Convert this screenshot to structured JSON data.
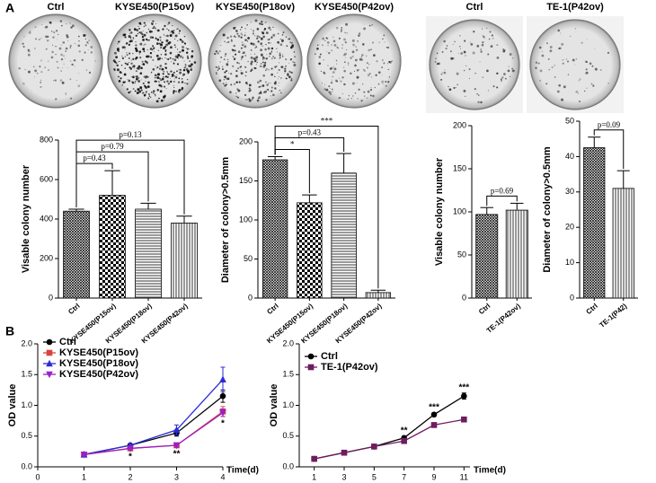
{
  "figure": {
    "panel_labels": [
      "A",
      "B"
    ],
    "dish_labels": [
      "Ctrl",
      "KYSE450(P15ov)",
      "KYSE450(P18ov)",
      "KYSE450(P42ov)",
      "Ctrl",
      "TE-1(P42ov)"
    ]
  },
  "chart_data": [
    {
      "type": "bar",
      "ylabel": "Visable colony number",
      "categories": [
        "Ctrl",
        "KYSE450(P15ov)",
        "KYSE450(P18ov)",
        "KYSE450(P42ov)"
      ],
      "values": [
        440,
        520,
        450,
        380
      ],
      "errors": [
        10,
        125,
        30,
        35
      ],
      "significance": [
        null,
        "p=0.43",
        "p=0.79",
        "p=0.13"
      ],
      "patterns": [
        "crosshatch",
        "checker",
        "hlines",
        "vlines"
      ],
      "ylim": [
        0,
        800
      ],
      "yticks": [
        0,
        200,
        400,
        600,
        800
      ]
    },
    {
      "type": "bar",
      "ylabel": "Diameter of colony>0.5mm",
      "categories": [
        "Ctrl",
        "KYSE450(P15ov)",
        "KYSE450(P18ov)",
        "KYSE450(P42ov)"
      ],
      "values": [
        177,
        122,
        160,
        7
      ],
      "errors": [
        4,
        10,
        25,
        3
      ],
      "significance": [
        null,
        "*",
        "p=0.43",
        "***"
      ],
      "patterns": [
        "crosshatch",
        "checker",
        "hlines",
        "vlines"
      ],
      "ylim": [
        0,
        200
      ],
      "yticks": [
        0,
        50,
        100,
        150,
        200
      ]
    },
    {
      "type": "bar",
      "ylabel": "Visable colony number",
      "categories": [
        "Ctrl",
        "TE-1(P42ov)"
      ],
      "values": [
        97,
        102
      ],
      "errors": [
        8,
        8
      ],
      "significance": [
        null,
        "p=0.69"
      ],
      "patterns": [
        "crosshatch",
        "vlines"
      ],
      "ylim": [
        0,
        200
      ],
      "yticks": [
        0,
        50,
        100,
        150,
        200
      ]
    },
    {
      "type": "bar",
      "ylabel": "Diameter of colony>0.5mm",
      "categories": [
        "Ctrl",
        "TE-1(P42)"
      ],
      "values": [
        42.5,
        31
      ],
      "errors": [
        3,
        5
      ],
      "significance": [
        null,
        "p=0.09"
      ],
      "patterns": [
        "crosshatch",
        "vlines"
      ],
      "ylim": [
        0,
        50
      ],
      "yticks": [
        0,
        10,
        20,
        30,
        40,
        50
      ]
    },
    {
      "type": "line",
      "ylabel": "OD value",
      "xlabel": "Time(d)",
      "legend": "upper left",
      "x": [
        1,
        2,
        3,
        4
      ],
      "xlim": [
        0,
        4
      ],
      "xticks": [
        0,
        1,
        2,
        3,
        4
      ],
      "ylim": [
        0,
        2
      ],
      "yticks": [
        {
          "value": 0,
          "label": "0.0"
        },
        0.5,
        {
          "value": 1,
          "label": "1.0"
        },
        1.5,
        {
          "value": 2,
          "label": "2.0"
        }
      ],
      "significance": [
        null,
        "*",
        "**",
        "*"
      ],
      "series": [
        {
          "name": "Ctrl",
          "color": "#000000",
          "marker": "circle",
          "values": [
            0.2,
            0.35,
            0.55,
            1.15
          ],
          "errors": [
            0.02,
            0.02,
            0.05,
            0.1
          ]
        },
        {
          "name": "KYSE450(P15ov)",
          "color": "#d9443c",
          "marker": "square",
          "values": [
            0.2,
            0.3,
            0.35,
            0.9
          ],
          "errors": [
            0.02,
            0.02,
            0.03,
            0.08
          ]
        },
        {
          "name": "KYSE450(P18ov)",
          "color": "#2b2bd6",
          "marker": "triangle",
          "values": [
            0.2,
            0.35,
            0.6,
            1.42
          ],
          "errors": [
            0.02,
            0.03,
            0.08,
            0.2
          ]
        },
        {
          "name": "KYSE450(P42ov)",
          "color": "#9a20c8",
          "marker": "triangle-down",
          "values": [
            0.2,
            0.3,
            0.35,
            0.88
          ],
          "errors": [
            0.02,
            0.02,
            0.03,
            0.06
          ]
        }
      ]
    },
    {
      "type": "line",
      "ylabel": "OD value",
      "xlabel": "Time(d)",
      "legend": "upper left",
      "x": [
        1,
        3,
        5,
        7,
        9,
        11
      ],
      "xlim": [
        0,
        11.4
      ],
      "xticks": [
        1,
        3,
        5,
        7,
        9,
        11
      ],
      "ylim": [
        0,
        2
      ],
      "yticks": [
        {
          "value": 0,
          "label": "0.0"
        },
        0.5,
        {
          "value": 1,
          "label": "1.0"
        },
        1.5,
        {
          "value": 2,
          "label": "2.0"
        }
      ],
      "significance": [
        null,
        null,
        null,
        "**",
        "***",
        "***"
      ],
      "series": [
        {
          "name": "Ctrl",
          "color": "#000000",
          "marker": "circle",
          "values": [
            0.13,
            0.23,
            0.33,
            0.47,
            0.85,
            1.15
          ],
          "errors": [
            0.01,
            0.01,
            0.02,
            0.03,
            0.03,
            0.05
          ]
        },
        {
          "name": "TE-1(P42ov)",
          "color": "#6e1d5e",
          "marker": "square",
          "values": [
            0.13,
            0.23,
            0.33,
            0.42,
            0.68,
            0.77
          ],
          "errors": [
            0.01,
            0.01,
            0.02,
            0.03,
            0.03,
            0.03
          ]
        }
      ]
    }
  ]
}
